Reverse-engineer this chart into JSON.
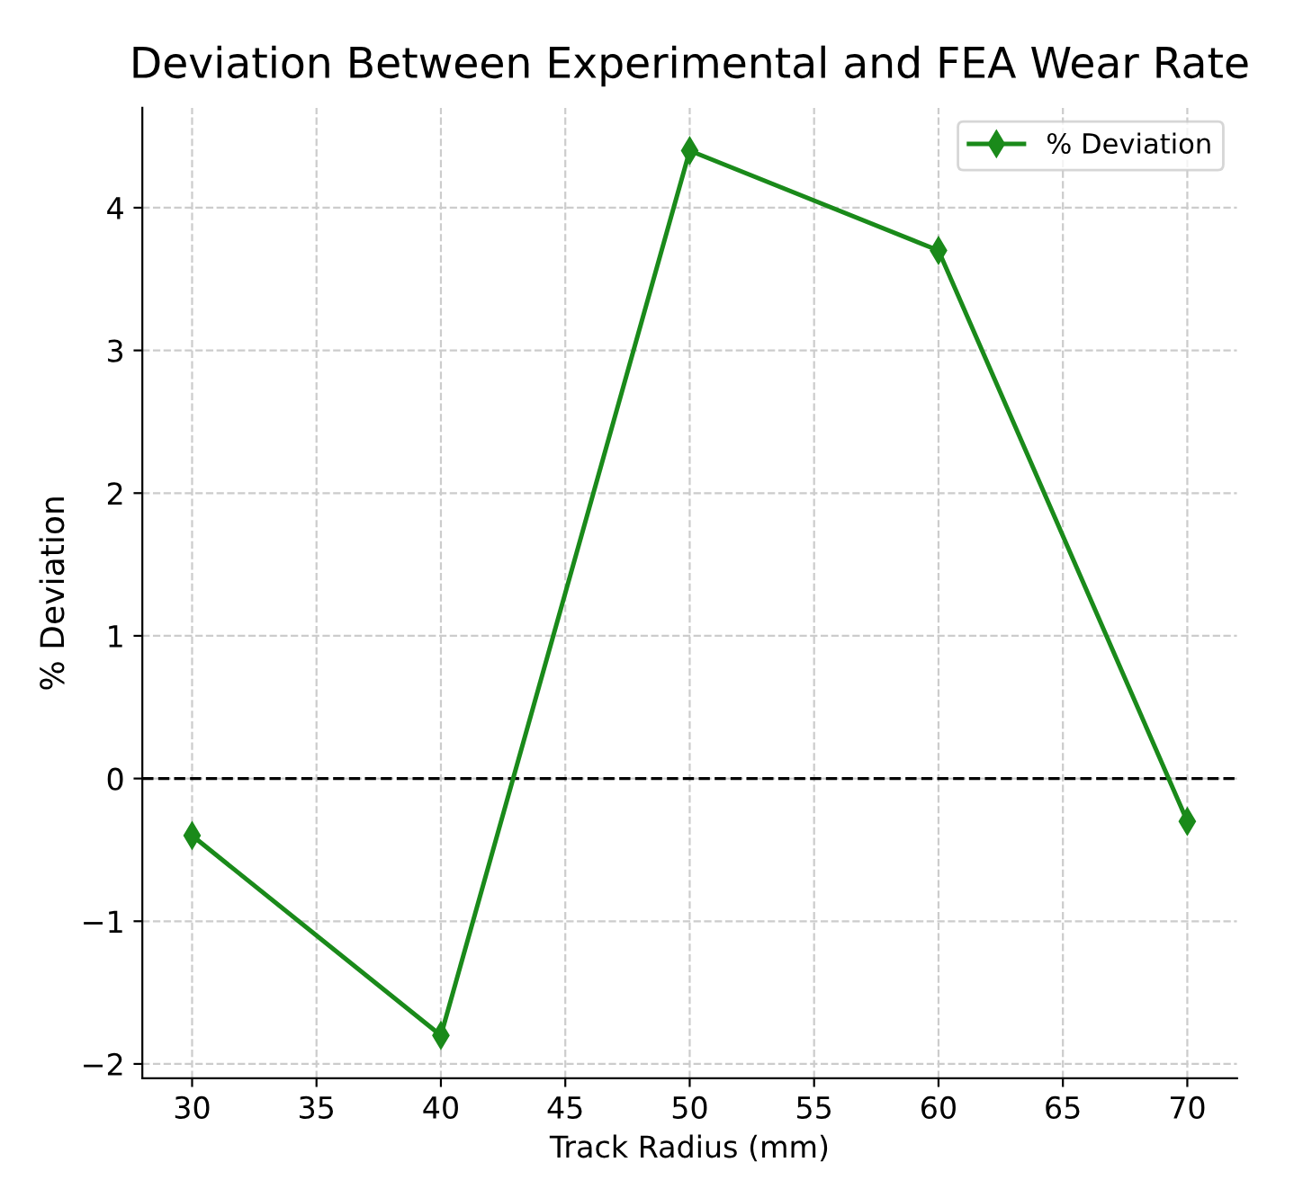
{
  "chart_data": {
    "type": "line",
    "title": "Deviation Between Experimental and FEA Wear Rate",
    "xlabel": "Track Radius (mm)",
    "ylabel": "% Deviation",
    "x": [
      30,
      40,
      50,
      60,
      70
    ],
    "series": [
      {
        "name": "% Deviation",
        "color": "#1a8a1a",
        "values": [
          -0.4,
          -1.8,
          4.4,
          3.7,
          -0.3
        ]
      }
    ],
    "xlim": [
      28,
      72
    ],
    "ylim": [
      -2.1,
      4.7
    ],
    "xticks": [
      30,
      35,
      40,
      45,
      50,
      55,
      60,
      65,
      70
    ],
    "yticks": [
      -2,
      -1,
      0,
      1,
      2,
      3,
      4
    ],
    "ref_lines": [
      {
        "axis": "y",
        "value": 0,
        "color": "#000000",
        "line_style": "dashed"
      }
    ],
    "grid": true,
    "legend": "top right",
    "marker": "diamond",
    "line_style": "solid"
  }
}
